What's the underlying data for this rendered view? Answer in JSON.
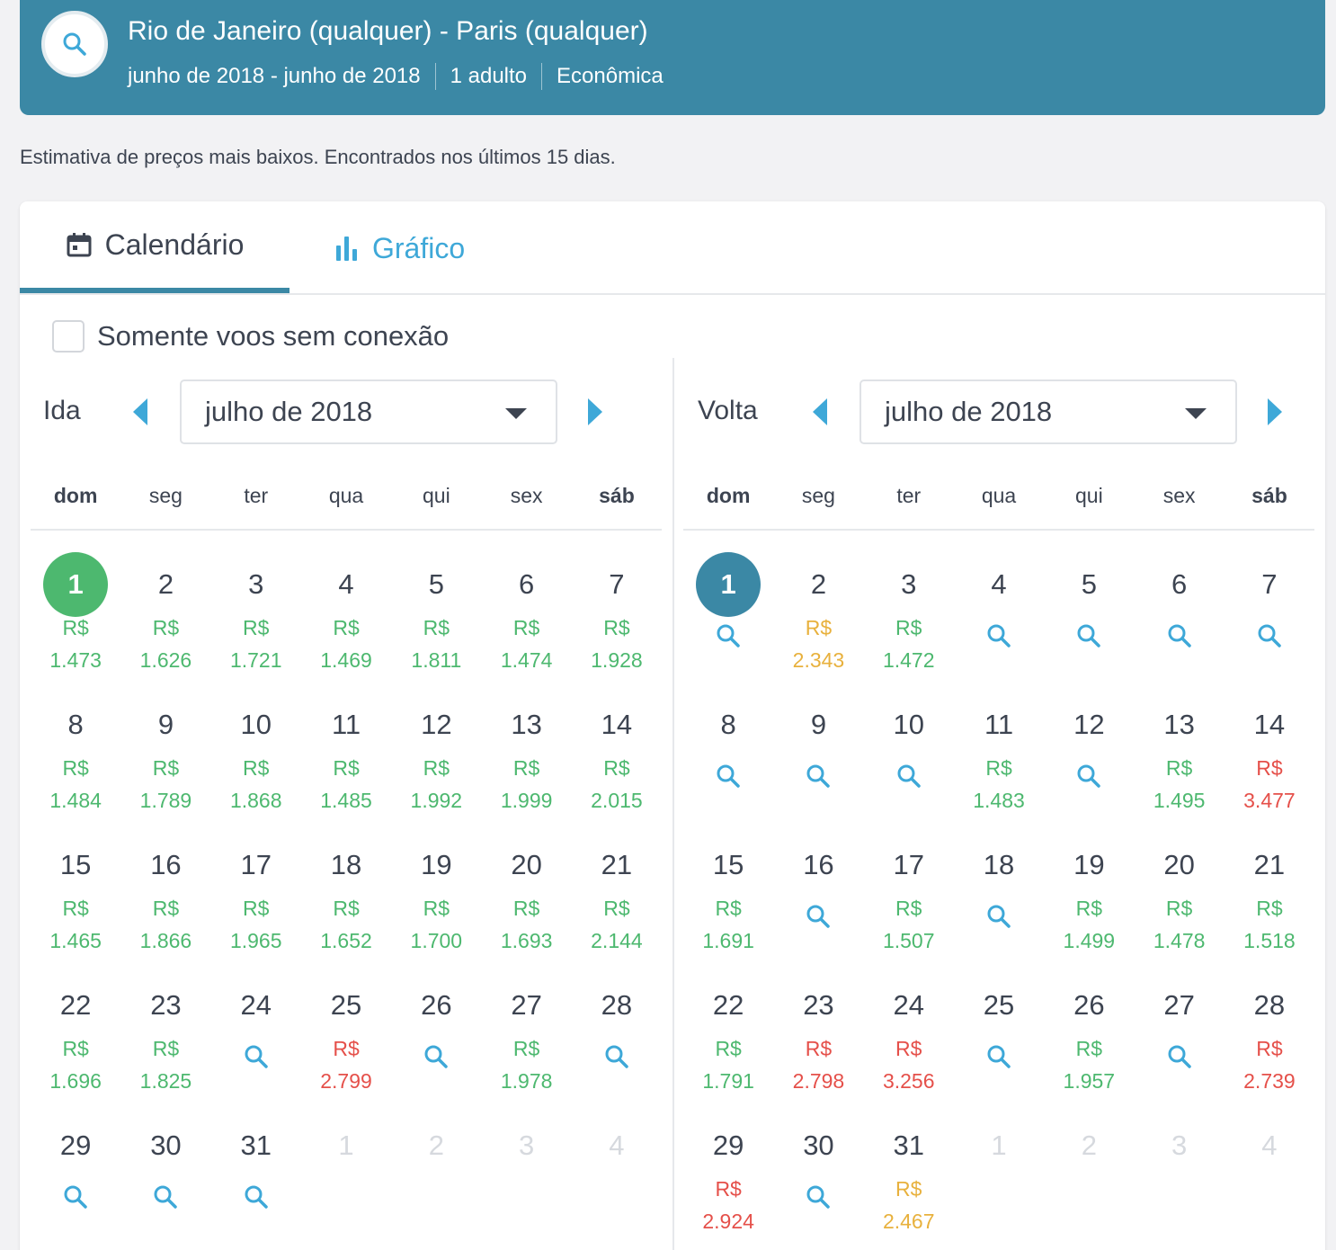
{
  "header": {
    "route": "Rio de Janeiro (qualquer) - Paris (qualquer)",
    "dates": "junho de 2018 - junho de 2018",
    "passengers": "1 adulto",
    "cabin": "Econômica"
  },
  "note": "Estimativa de preços mais baixos. Encontrados nos últimos 15 dias.",
  "tabs": {
    "calendar": "Calendário",
    "chart": "Gráfico",
    "active": "calendar"
  },
  "nonstop_label": "Somente voos sem conexão",
  "nonstop_checked": false,
  "weekdays": [
    "dom",
    "seg",
    "ter",
    "qua",
    "qui",
    "sex",
    "sáb"
  ],
  "colors": {
    "header_bg": "#3b88a5",
    "cheap": "#4db86f",
    "mid": "#e8b13d",
    "expensive": "#e5504a",
    "link": "#3ea8d8"
  },
  "outbound": {
    "label": "Ida",
    "month": "julho de 2018",
    "selected_color": "green",
    "days": [
      {
        "d": "1",
        "cur": "R$",
        "val": "1.473",
        "c": "green",
        "sel": true
      },
      {
        "d": "2",
        "cur": "R$",
        "val": "1.626",
        "c": "green"
      },
      {
        "d": "3",
        "cur": "R$",
        "val": "1.721",
        "c": "green"
      },
      {
        "d": "4",
        "cur": "R$",
        "val": "1.469",
        "c": "green"
      },
      {
        "d": "5",
        "cur": "R$",
        "val": "1.811",
        "c": "green"
      },
      {
        "d": "6",
        "cur": "R$",
        "val": "1.474",
        "c": "green"
      },
      {
        "d": "7",
        "cur": "R$",
        "val": "1.928",
        "c": "green"
      },
      {
        "d": "8",
        "cur": "R$",
        "val": "1.484",
        "c": "green"
      },
      {
        "d": "9",
        "cur": "R$",
        "val": "1.789",
        "c": "green"
      },
      {
        "d": "10",
        "cur": "R$",
        "val": "1.868",
        "c": "green"
      },
      {
        "d": "11",
        "cur": "R$",
        "val": "1.485",
        "c": "green"
      },
      {
        "d": "12",
        "cur": "R$",
        "val": "1.992",
        "c": "green"
      },
      {
        "d": "13",
        "cur": "R$",
        "val": "1.999",
        "c": "green"
      },
      {
        "d": "14",
        "cur": "R$",
        "val": "2.015",
        "c": "green"
      },
      {
        "d": "15",
        "cur": "R$",
        "val": "1.465",
        "c": "green"
      },
      {
        "d": "16",
        "cur": "R$",
        "val": "1.866",
        "c": "green"
      },
      {
        "d": "17",
        "cur": "R$",
        "val": "1.965",
        "c": "green"
      },
      {
        "d": "18",
        "cur": "R$",
        "val": "1.652",
        "c": "green"
      },
      {
        "d": "19",
        "cur": "R$",
        "val": "1.700",
        "c": "green"
      },
      {
        "d": "20",
        "cur": "R$",
        "val": "1.693",
        "c": "green"
      },
      {
        "d": "21",
        "cur": "R$",
        "val": "2.144",
        "c": "green"
      },
      {
        "d": "22",
        "cur": "R$",
        "val": "1.696",
        "c": "green"
      },
      {
        "d": "23",
        "cur": "R$",
        "val": "1.825",
        "c": "green"
      },
      {
        "d": "24",
        "search": true
      },
      {
        "d": "25",
        "cur": "R$",
        "val": "2.799",
        "c": "red"
      },
      {
        "d": "26",
        "search": true
      },
      {
        "d": "27",
        "cur": "R$",
        "val": "1.978",
        "c": "green"
      },
      {
        "d": "28",
        "search": true
      },
      {
        "d": "29",
        "search": true
      },
      {
        "d": "30",
        "search": true
      },
      {
        "d": "31",
        "search": true
      },
      {
        "d": "1",
        "muted": true
      },
      {
        "d": "2",
        "muted": true
      },
      {
        "d": "3",
        "muted": true
      },
      {
        "d": "4",
        "muted": true
      }
    ]
  },
  "return": {
    "label": "Volta",
    "month": "julho de 2018",
    "selected_color": "blue",
    "days": [
      {
        "d": "1",
        "search": true,
        "sel": true
      },
      {
        "d": "2",
        "cur": "R$",
        "val": "2.343",
        "c": "yellow"
      },
      {
        "d": "3",
        "cur": "R$",
        "val": "1.472",
        "c": "green"
      },
      {
        "d": "4",
        "search": true
      },
      {
        "d": "5",
        "search": true
      },
      {
        "d": "6",
        "search": true
      },
      {
        "d": "7",
        "search": true
      },
      {
        "d": "8",
        "search": true
      },
      {
        "d": "9",
        "search": true
      },
      {
        "d": "10",
        "search": true
      },
      {
        "d": "11",
        "cur": "R$",
        "val": "1.483",
        "c": "green"
      },
      {
        "d": "12",
        "search": true
      },
      {
        "d": "13",
        "cur": "R$",
        "val": "1.495",
        "c": "green"
      },
      {
        "d": "14",
        "cur": "R$",
        "val": "3.477",
        "c": "red"
      },
      {
        "d": "15",
        "cur": "R$",
        "val": "1.691",
        "c": "green"
      },
      {
        "d": "16",
        "search": true
      },
      {
        "d": "17",
        "cur": "R$",
        "val": "1.507",
        "c": "green"
      },
      {
        "d": "18",
        "search": true
      },
      {
        "d": "19",
        "cur": "R$",
        "val": "1.499",
        "c": "green"
      },
      {
        "d": "20",
        "cur": "R$",
        "val": "1.478",
        "c": "green"
      },
      {
        "d": "21",
        "cur": "R$",
        "val": "1.518",
        "c": "green"
      },
      {
        "d": "22",
        "cur": "R$",
        "val": "1.791",
        "c": "green"
      },
      {
        "d": "23",
        "cur": "R$",
        "val": "2.798",
        "c": "red"
      },
      {
        "d": "24",
        "cur": "R$",
        "val": "3.256",
        "c": "red"
      },
      {
        "d": "25",
        "search": true
      },
      {
        "d": "26",
        "cur": "R$",
        "val": "1.957",
        "c": "green"
      },
      {
        "d": "27",
        "search": true
      },
      {
        "d": "28",
        "cur": "R$",
        "val": "2.739",
        "c": "red"
      },
      {
        "d": "29",
        "cur": "R$",
        "val": "2.924",
        "c": "red"
      },
      {
        "d": "30",
        "search": true
      },
      {
        "d": "31",
        "cur": "R$",
        "val": "2.467",
        "c": "yellow"
      },
      {
        "d": "1",
        "muted": true
      },
      {
        "d": "2",
        "muted": true
      },
      {
        "d": "3",
        "muted": true
      },
      {
        "d": "4",
        "muted": true
      }
    ]
  }
}
